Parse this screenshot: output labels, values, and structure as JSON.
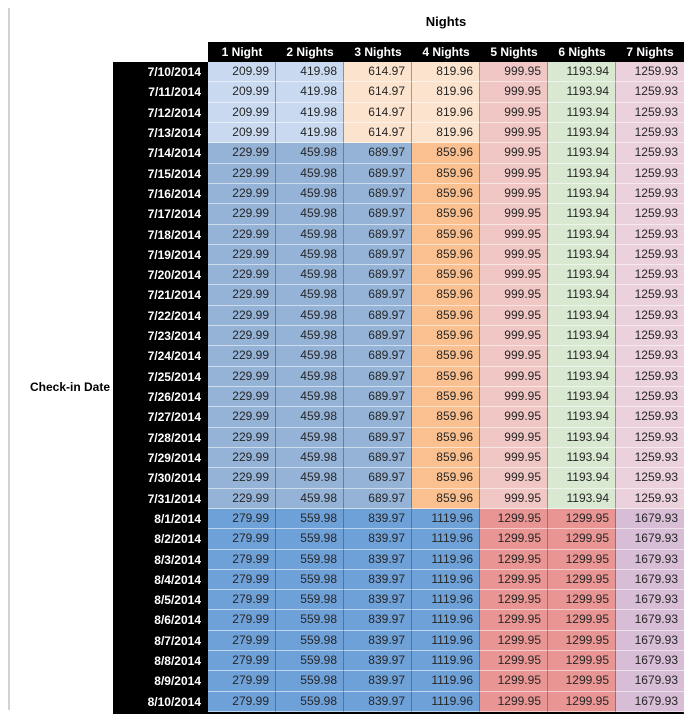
{
  "title": "Nights",
  "row_axis_label": "Check-in Date",
  "columns": [
    "1 Night",
    "2 Nights",
    "3 Nights",
    "4 Nights",
    "5 Nights",
    "6 Nights",
    "7 Nights"
  ],
  "palette": {
    "header_bg": "#000000",
    "header_text": "#ffffff",
    "light_blue": "#C9DAF0",
    "light_orange": "#FBE3CD",
    "pink": "#F0C7C5",
    "green": "#D9E8D0",
    "light_rose": "#EAD1DC",
    "medium_blue": "#95B3D7",
    "medium_orange": "#FAC08F",
    "strong_blue": "#6FA1D9",
    "red": "#E89593",
    "purple": "#D8BDD6"
  },
  "band_colors": {
    "band0": [
      "#C9DAF0",
      "#C9DAF0",
      "#FBE3CD",
      "#FBE3CD",
      "#F0C7C5",
      "#D9E8D0",
      "#EAD1DC"
    ],
    "band1": [
      "#95B3D7",
      "#95B3D7",
      "#95B3D7",
      "#FAC08F",
      "#F0C7C5",
      "#D9E8D0",
      "#EAD1DC"
    ],
    "band2": [
      "#6FA1D9",
      "#6FA1D9",
      "#6FA1D9",
      "#6FA1D9",
      "#E89593",
      "#E89593",
      "#D8BDD6"
    ]
  },
  "rows": [
    {
      "date": "7/10/2014",
      "band": 0,
      "values": [
        "209.99",
        "419.98",
        "614.97",
        "819.96",
        "999.95",
        "1193.94",
        "1259.93"
      ]
    },
    {
      "date": "7/11/2014",
      "band": 0,
      "values": [
        "209.99",
        "419.98",
        "614.97",
        "819.96",
        "999.95",
        "1193.94",
        "1259.93"
      ]
    },
    {
      "date": "7/12/2014",
      "band": 0,
      "values": [
        "209.99",
        "419.98",
        "614.97",
        "819.96",
        "999.95",
        "1193.94",
        "1259.93"
      ]
    },
    {
      "date": "7/13/2014",
      "band": 0,
      "values": [
        "209.99",
        "419.98",
        "614.97",
        "819.96",
        "999.95",
        "1193.94",
        "1259.93"
      ]
    },
    {
      "date": "7/14/2014",
      "band": 1,
      "values": [
        "229.99",
        "459.98",
        "689.97",
        "859.96",
        "999.95",
        "1193.94",
        "1259.93"
      ]
    },
    {
      "date": "7/15/2014",
      "band": 1,
      "values": [
        "229.99",
        "459.98",
        "689.97",
        "859.96",
        "999.95",
        "1193.94",
        "1259.93"
      ]
    },
    {
      "date": "7/16/2014",
      "band": 1,
      "values": [
        "229.99",
        "459.98",
        "689.97",
        "859.96",
        "999.95",
        "1193.94",
        "1259.93"
      ]
    },
    {
      "date": "7/17/2014",
      "band": 1,
      "values": [
        "229.99",
        "459.98",
        "689.97",
        "859.96",
        "999.95",
        "1193.94",
        "1259.93"
      ]
    },
    {
      "date": "7/18/2014",
      "band": 1,
      "values": [
        "229.99",
        "459.98",
        "689.97",
        "859.96",
        "999.95",
        "1193.94",
        "1259.93"
      ]
    },
    {
      "date": "7/19/2014",
      "band": 1,
      "values": [
        "229.99",
        "459.98",
        "689.97",
        "859.96",
        "999.95",
        "1193.94",
        "1259.93"
      ]
    },
    {
      "date": "7/20/2014",
      "band": 1,
      "values": [
        "229.99",
        "459.98",
        "689.97",
        "859.96",
        "999.95",
        "1193.94",
        "1259.93"
      ]
    },
    {
      "date": "7/21/2014",
      "band": 1,
      "values": [
        "229.99",
        "459.98",
        "689.97",
        "859.96",
        "999.95",
        "1193.94",
        "1259.93"
      ]
    },
    {
      "date": "7/22/2014",
      "band": 1,
      "values": [
        "229.99",
        "459.98",
        "689.97",
        "859.96",
        "999.95",
        "1193.94",
        "1259.93"
      ]
    },
    {
      "date": "7/23/2014",
      "band": 1,
      "values": [
        "229.99",
        "459.98",
        "689.97",
        "859.96",
        "999.95",
        "1193.94",
        "1259.93"
      ]
    },
    {
      "date": "7/24/2014",
      "band": 1,
      "values": [
        "229.99",
        "459.98",
        "689.97",
        "859.96",
        "999.95",
        "1193.94",
        "1259.93"
      ]
    },
    {
      "date": "7/25/2014",
      "band": 1,
      "values": [
        "229.99",
        "459.98",
        "689.97",
        "859.96",
        "999.95",
        "1193.94",
        "1259.93"
      ]
    },
    {
      "date": "7/26/2014",
      "band": 1,
      "values": [
        "229.99",
        "459.98",
        "689.97",
        "859.96",
        "999.95",
        "1193.94",
        "1259.93"
      ]
    },
    {
      "date": "7/27/2014",
      "band": 1,
      "values": [
        "229.99",
        "459.98",
        "689.97",
        "859.96",
        "999.95",
        "1193.94",
        "1259.93"
      ]
    },
    {
      "date": "7/28/2014",
      "band": 1,
      "values": [
        "229.99",
        "459.98",
        "689.97",
        "859.96",
        "999.95",
        "1193.94",
        "1259.93"
      ]
    },
    {
      "date": "7/29/2014",
      "band": 1,
      "values": [
        "229.99",
        "459.98",
        "689.97",
        "859.96",
        "999.95",
        "1193.94",
        "1259.93"
      ]
    },
    {
      "date": "7/30/2014",
      "band": 1,
      "values": [
        "229.99",
        "459.98",
        "689.97",
        "859.96",
        "999.95",
        "1193.94",
        "1259.93"
      ]
    },
    {
      "date": "7/31/2014",
      "band": 1,
      "values": [
        "229.99",
        "459.98",
        "689.97",
        "859.96",
        "999.95",
        "1193.94",
        "1259.93"
      ]
    },
    {
      "date": "8/1/2014",
      "band": 2,
      "values": [
        "279.99",
        "559.98",
        "839.97",
        "1119.96",
        "1299.95",
        "1299.95",
        "1679.93"
      ]
    },
    {
      "date": "8/2/2014",
      "band": 2,
      "values": [
        "279.99",
        "559.98",
        "839.97",
        "1119.96",
        "1299.95",
        "1299.95",
        "1679.93"
      ]
    },
    {
      "date": "8/3/2014",
      "band": 2,
      "values": [
        "279.99",
        "559.98",
        "839.97",
        "1119.96",
        "1299.95",
        "1299.95",
        "1679.93"
      ]
    },
    {
      "date": "8/4/2014",
      "band": 2,
      "values": [
        "279.99",
        "559.98",
        "839.97",
        "1119.96",
        "1299.95",
        "1299.95",
        "1679.93"
      ]
    },
    {
      "date": "8/5/2014",
      "band": 2,
      "values": [
        "279.99",
        "559.98",
        "839.97",
        "1119.96",
        "1299.95",
        "1299.95",
        "1679.93"
      ]
    },
    {
      "date": "8/6/2014",
      "band": 2,
      "values": [
        "279.99",
        "559.98",
        "839.97",
        "1119.96",
        "1299.95",
        "1299.95",
        "1679.93"
      ]
    },
    {
      "date": "8/7/2014",
      "band": 2,
      "values": [
        "279.99",
        "559.98",
        "839.97",
        "1119.96",
        "1299.95",
        "1299.95",
        "1679.93"
      ]
    },
    {
      "date": "8/8/2014",
      "band": 2,
      "values": [
        "279.99",
        "559.98",
        "839.97",
        "1119.96",
        "1299.95",
        "1299.95",
        "1679.93"
      ]
    },
    {
      "date": "8/9/2014",
      "band": 2,
      "values": [
        "279.99",
        "559.98",
        "839.97",
        "1119.96",
        "1299.95",
        "1299.95",
        "1679.93"
      ]
    },
    {
      "date": "8/10/2014",
      "band": 2,
      "values": [
        "279.99",
        "559.98",
        "839.97",
        "1119.96",
        "1299.95",
        "1299.95",
        "1679.93"
      ]
    }
  ]
}
